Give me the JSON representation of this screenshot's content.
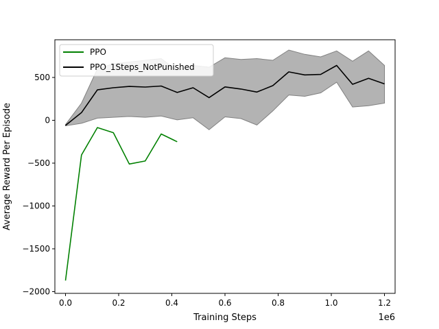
{
  "chart_data": {
    "type": "line",
    "xlabel": "Training Steps",
    "ylabel": "Average Reward Per Episode",
    "x_multiplier_label": "1e6",
    "xlim": [
      -0.04,
      1.24
    ],
    "ylim": [
      -2020,
      940
    ],
    "x_ticks": [
      0.0,
      0.2,
      0.4,
      0.6,
      0.8,
      1.0,
      1.2
    ],
    "x_tick_labels": [
      "0.0",
      "0.2",
      "0.4",
      "0.6",
      "0.8",
      "1.0",
      "1.2"
    ],
    "y_ticks": [
      -2000,
      -1500,
      -1000,
      -500,
      0,
      500
    ],
    "y_tick_labels": [
      "−2000",
      "−1500",
      "−1000",
      "−500",
      "0",
      "500"
    ],
    "legend_position": "top-left",
    "grid": false,
    "series": [
      {
        "name": "PPO",
        "color": "#008000",
        "x": [
          0.0,
          0.06,
          0.12,
          0.18,
          0.24,
          0.3,
          0.36,
          0.42
        ],
        "y": [
          -1870,
          -405,
          -85,
          -145,
          -510,
          -475,
          -160,
          -250
        ]
      },
      {
        "name": "PPO_1Steps_NotPunished",
        "color": "#000000",
        "x": [
          0.0,
          0.06,
          0.12,
          0.18,
          0.24,
          0.3,
          0.36,
          0.42,
          0.48,
          0.54,
          0.6,
          0.66,
          0.72,
          0.78,
          0.84,
          0.9,
          0.96,
          1.02,
          1.08,
          1.14,
          1.2
        ],
        "y": [
          -60,
          90,
          355,
          380,
          395,
          388,
          400,
          325,
          380,
          265,
          390,
          365,
          330,
          405,
          565,
          530,
          535,
          640,
          420,
          490,
          425
        ],
        "band_upper": [
          -50,
          200,
          600,
          660,
          680,
          700,
          720,
          580,
          640,
          620,
          730,
          710,
          720,
          700,
          820,
          770,
          740,
          810,
          690,
          810,
          640
        ],
        "band_lower": [
          -65,
          -35,
          25,
          35,
          45,
          35,
          50,
          5,
          30,
          -110,
          40,
          20,
          -55,
          110,
          295,
          280,
          320,
          445,
          155,
          170,
          200
        ],
        "band_color": "#808080"
      }
    ]
  }
}
